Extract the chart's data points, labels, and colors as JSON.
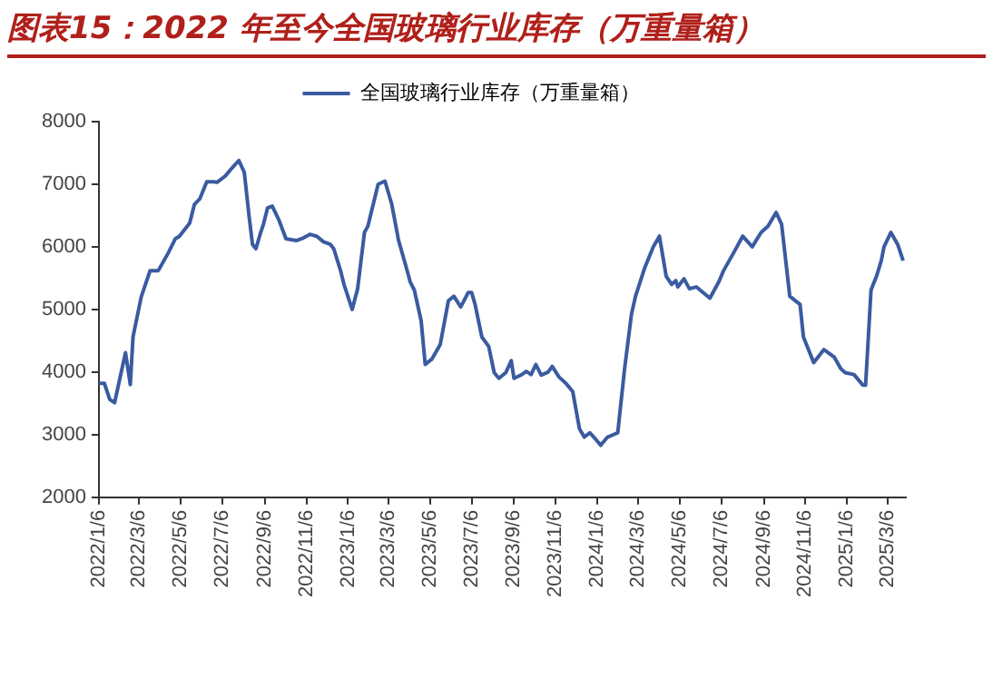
{
  "chart_data": {
    "type": "line",
    "title": "图表15：2022 年至今全国玻璃行业库存（万重量箱）",
    "legend": "top",
    "grid": false,
    "marker": "none",
    "line_style": "solid",
    "xlim": [
      "2022-01-06",
      "2025-04-02"
    ],
    "xticks": [
      {
        "value": "2022-01-06",
        "label": "2022/1/6"
      },
      {
        "value": "2022-03-06",
        "label": "2022/3/6"
      },
      {
        "value": "2022-05-06",
        "label": "2022/5/6"
      },
      {
        "value": "2022-07-06",
        "label": "2022/7/6"
      },
      {
        "value": "2022-09-06",
        "label": "2022/9/6"
      },
      {
        "value": "2022-11-06",
        "label": "2022/11/6"
      },
      {
        "value": "2023-01-06",
        "label": "2023/1/6"
      },
      {
        "value": "2023-03-06",
        "label": "2023/3/6"
      },
      {
        "value": "2023-05-06",
        "label": "2023/5/6"
      },
      {
        "value": "2023-07-06",
        "label": "2023/7/6"
      },
      {
        "value": "2023-09-06",
        "label": "2023/9/6"
      },
      {
        "value": "2023-11-06",
        "label": "2023/11/6"
      },
      {
        "value": "2024-01-06",
        "label": "2024/1/6"
      },
      {
        "value": "2024-03-06",
        "label": "2024/3/6"
      },
      {
        "value": "2024-05-06",
        "label": "2024/5/6"
      },
      {
        "value": "2024-07-06",
        "label": "2024/7/6"
      },
      {
        "value": "2024-09-06",
        "label": "2024/9/6"
      },
      {
        "value": "2024-11-06",
        "label": "2024/11/6"
      },
      {
        "value": "2025-01-06",
        "label": "2025/1/6"
      },
      {
        "value": "2025-03-06",
        "label": "2025/3/6"
      }
    ],
    "ylim": [
      2000,
      8000
    ],
    "yticks": [
      2000,
      3000,
      4000,
      5000,
      6000,
      7000,
      8000
    ],
    "x": [
      "2022-01-06",
      "2022-01-14",
      "2022-01-22",
      "2022-01-29",
      "2022-02-05",
      "2022-02-14",
      "2022-02-21",
      "2022-02-25",
      "2022-03-09",
      "2022-03-22",
      "2022-04-03",
      "2022-04-18",
      "2022-04-28",
      "2022-05-04",
      "2022-05-19",
      "2022-05-26",
      "2022-06-03",
      "2022-06-13",
      "2022-06-23",
      "2022-06-28",
      "2022-07-10",
      "2022-07-20",
      "2022-07-30",
      "2022-08-07",
      "2022-08-14",
      "2022-08-19",
      "2022-08-24",
      "2022-08-31",
      "2022-09-04",
      "2022-09-10",
      "2022-09-17",
      "2022-09-27",
      "2022-10-07",
      "2022-10-22",
      "2022-11-01",
      "2022-11-11",
      "2022-11-21",
      "2022-12-01",
      "2022-12-11",
      "2022-12-16",
      "2022-12-26",
      "2022-12-31",
      "2023-01-12",
      "2023-01-20",
      "2023-01-30",
      "2023-02-04",
      "2023-02-19",
      "2023-03-01",
      "2023-03-11",
      "2023-03-21",
      "2023-03-31",
      "2023-04-07",
      "2023-04-13",
      "2023-04-23",
      "2023-04-29",
      "2023-05-09",
      "2023-05-21",
      "2023-06-02",
      "2023-06-10",
      "2023-06-20",
      "2023-07-01",
      "2023-07-06",
      "2023-07-11",
      "2023-07-21",
      "2023-07-31",
      "2023-08-08",
      "2023-08-15",
      "2023-08-25",
      "2023-09-02",
      "2023-09-06",
      "2023-09-16",
      "2023-09-24",
      "2023-10-01",
      "2023-10-08",
      "2023-10-16",
      "2023-10-26",
      "2023-11-01",
      "2023-11-11",
      "2023-11-21",
      "2023-12-01",
      "2023-12-11",
      "2023-12-18",
      "2023-12-26",
      "2024-01-01",
      "2024-01-11",
      "2024-01-21",
      "2024-02-05",
      "2024-02-15",
      "2024-02-25",
      "2024-03-02",
      "2024-03-15",
      "2024-03-28",
      "2024-04-06",
      "2024-04-16",
      "2024-04-24",
      "2024-04-30",
      "2024-05-03",
      "2024-05-12",
      "2024-05-20",
      "2024-05-30",
      "2024-06-09",
      "2024-06-19",
      "2024-07-02",
      "2024-07-09",
      "2024-07-24",
      "2024-08-06",
      "2024-08-20",
      "2024-09-02",
      "2024-09-12",
      "2024-09-24",
      "2024-10-02",
      "2024-10-14",
      "2024-10-29",
      "2024-11-03",
      "2024-11-18",
      "2024-12-03",
      "2024-12-18",
      "2024-12-28",
      "2025-01-03",
      "2025-01-16",
      "2025-01-29",
      "2025-02-02",
      "2025-02-10",
      "2025-02-18",
      "2025-02-25",
      "2025-03-01",
      "2025-03-11",
      "2025-03-21",
      "2025-03-29"
    ],
    "series": [
      {
        "name": "全国玻璃行业库存（万重量箱）",
        "color": "#3a5ba0",
        "values": [
          3820,
          3820,
          3560,
          3510,
          3860,
          4310,
          3800,
          4560,
          5200,
          5620,
          5620,
          5910,
          6130,
          6170,
          6380,
          6680,
          6770,
          7040,
          7040,
          7030,
          7130,
          7260,
          7380,
          7190,
          6490,
          6040,
          5970,
          6230,
          6360,
          6620,
          6650,
          6420,
          6130,
          6100,
          6140,
          6200,
          6170,
          6080,
          6040,
          5970,
          5620,
          5400,
          5000,
          5330,
          6230,
          6330,
          7000,
          7050,
          6680,
          6100,
          5720,
          5440,
          5310,
          4820,
          4120,
          4210,
          4440,
          5140,
          5210,
          5040,
          5270,
          5270,
          5080,
          4560,
          4410,
          3990,
          3900,
          3990,
          4180,
          3900,
          3950,
          4010,
          3960,
          4120,
          3950,
          4000,
          4090,
          3920,
          3820,
          3690,
          3090,
          2960,
          3030,
          2960,
          2830,
          2960,
          3030,
          4050,
          4920,
          5210,
          5650,
          6000,
          6170,
          5530,
          5400,
          5460,
          5360,
          5490,
          5330,
          5360,
          5270,
          5180,
          5440,
          5620,
          5910,
          6170,
          6000,
          6230,
          6330,
          6550,
          6360,
          5210,
          5080,
          4560,
          4150,
          4360,
          4240,
          4050,
          3990,
          3960,
          3790,
          3790,
          5310,
          5530,
          5780,
          6000,
          6230,
          6040,
          5780
        ]
      }
    ]
  }
}
